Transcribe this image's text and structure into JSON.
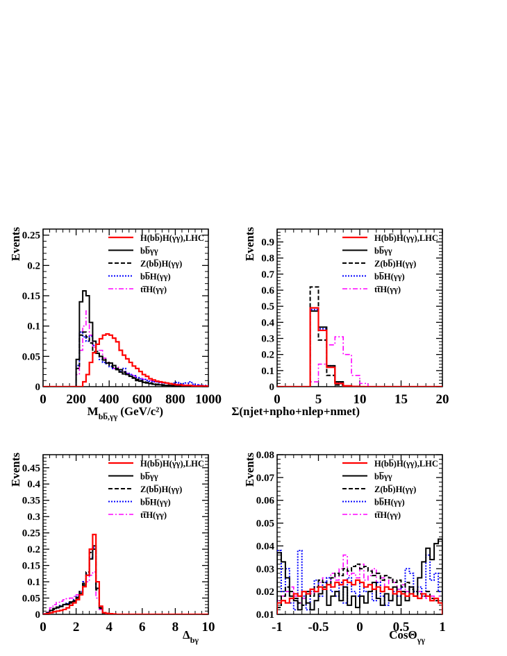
{
  "colors": {
    "signal": "#ff0000",
    "bbaa": "#000000",
    "zh": "#000000",
    "bbh": "#0000ff",
    "tth": "#ff00ff"
  },
  "legend": [
    {
      "key": "signal",
      "label": "H(bb̅)H(γγ),LHC",
      "style": "solid",
      "width": 2.2
    },
    {
      "key": "bbaa",
      "label": "bb̅γγ",
      "style": "solid",
      "width": 2
    },
    {
      "key": "zh",
      "label": "Z(bb̅)H(γγ)",
      "style": "dashed",
      "width": 2
    },
    {
      "key": "bbh",
      "label": "bb̅H(γγ)",
      "style": "dotted",
      "width": 2
    },
    {
      "key": "tth",
      "label": "tt̅H(γγ)",
      "style": "dashdot",
      "width": 1.6
    }
  ],
  "chart_data": [
    {
      "type": "line",
      "title": "",
      "xlabel": "M",
      "xlabel_sub": "bb̅,γγ",
      "xlabel_tail": "(GeV/c²)",
      "ylabel": "Events",
      "xlim": [
        0,
        1000
      ],
      "ylim": [
        0,
        0.26
      ],
      "xticks": [
        0,
        200,
        400,
        600,
        800,
        1000
      ],
      "yticks": [
        0,
        0.05,
        0.1,
        0.15,
        0.2,
        0.25
      ],
      "ytick_labels": [
        "0",
        "0.05",
        "0.1",
        "0.15",
        "0.2",
        "0.25"
      ],
      "bin_edges": [
        200,
        220,
        240,
        260,
        280,
        300,
        320,
        340,
        360,
        380,
        400,
        420,
        440,
        460,
        480,
        500,
        520,
        540,
        560,
        580,
        600,
        620,
        640,
        660,
        680,
        700,
        720,
        740,
        760,
        780,
        800,
        820,
        840,
        860,
        880,
        900,
        920,
        940,
        960,
        980,
        1000
      ],
      "series": [
        {
          "key": "signal",
          "values": [
            0,
            0,
            0.008,
            0.02,
            0.04,
            0.056,
            0.07,
            0.079,
            0.085,
            0.087,
            0.085,
            0.08,
            0.074,
            0.06,
            0.052,
            0.046,
            0.04,
            0.034,
            0.03,
            0.025,
            0.02,
            0.017,
            0.013,
            0.011,
            0.009,
            0.008,
            0.007,
            0.006,
            0.005,
            0.004,
            0.003,
            0.003,
            0.002,
            0.002,
            0.002,
            0.001,
            0.001,
            0.001,
            0.001,
            0.001
          ]
        },
        {
          "key": "bbaa",
          "values": [
            0.045,
            0.14,
            0.158,
            0.15,
            0.106,
            0.075,
            0.055,
            0.05,
            0.044,
            0.039,
            0.039,
            0.035,
            0.028,
            0.024,
            0.021,
            0.02,
            0.017,
            0.014,
            0.01,
            0.009,
            0.007,
            0.006,
            0.005,
            0.004,
            0.003,
            0.003,
            0.002,
            0.002,
            0.002,
            0.001,
            0.001,
            0.001,
            0.001,
            0.001,
            0.001,
            0.001,
            0.001,
            0.001,
            0.001,
            0.001
          ]
        },
        {
          "key": "zh",
          "values": [
            0.03,
            0.085,
            0.09,
            0.082,
            0.072,
            0.058,
            0.058,
            0.05,
            0.045,
            0.04,
            0.035,
            0.032,
            0.03,
            0.028,
            0.024,
            0.02,
            0.018,
            0.015,
            0.012,
            0.01,
            0.009,
            0.007,
            0.006,
            0.005,
            0.004,
            0.003,
            0.003,
            0.002,
            0.002,
            0.002,
            0.001,
            0.001,
            0.001,
            0.001,
            0.001,
            0.001,
            0.001,
            0.001,
            0.001,
            0.001
          ]
        },
        {
          "key": "bbh",
          "values": [
            0.035,
            0.09,
            0.082,
            0.075,
            0.083,
            0.068,
            0.055,
            0.045,
            0.04,
            0.038,
            0.033,
            0.03,
            0.028,
            0.025,
            0.03,
            0.022,
            0.02,
            0.018,
            0.015,
            0.013,
            0.012,
            0.01,
            0.009,
            0.008,
            0.008,
            0.007,
            0.006,
            0.006,
            0.005,
            0.006,
            0.007,
            0.005,
            0.005,
            0.006,
            0.008,
            0.004,
            0.003,
            0.002,
            0.002,
            0.002
          ]
        },
        {
          "key": "tth",
          "values": [
            0.02,
            0.06,
            0.1,
            0.125,
            0.085,
            0.065,
            0.055,
            0.06,
            0.047,
            0.04,
            0.035,
            0.03,
            0.032,
            0.028,
            0.025,
            0.022,
            0.02,
            0.018,
            0.016,
            0.014,
            0.012,
            0.011,
            0.01,
            0.009,
            0.008,
            0.007,
            0.006,
            0.005,
            0.005,
            0.004,
            0.004,
            0.003,
            0.003,
            0.003,
            0.002,
            0.002,
            0.002,
            0.002,
            0.001,
            0.001
          ]
        }
      ]
    },
    {
      "type": "line",
      "title": "",
      "xlabel": "Σ(njet+npho+nlep+nmet)",
      "xlabel_sub": "",
      "xlabel_tail": "",
      "ylabel": "Events",
      "xlim": [
        0,
        20
      ],
      "ylim": [
        0,
        0.98
      ],
      "xticks": [
        0,
        5,
        10,
        15,
        20
      ],
      "yticks": [
        0,
        0.1,
        0.2,
        0.3,
        0.4,
        0.5,
        0.6,
        0.7,
        0.8,
        0.9
      ],
      "ytick_labels": [
        "0",
        "0.1",
        "0.2",
        "0.3",
        "0.4",
        "0.5",
        "0.6",
        "0.7",
        "0.8",
        "0.9"
      ],
      "bin_edges": [
        4,
        5,
        6,
        7,
        8,
        9,
        10,
        11
      ],
      "series": [
        {
          "key": "signal",
          "values": [
            0.49,
            0.35,
            0.12,
            0.02,
            0.005,
            0.001,
            0
          ]
        },
        {
          "key": "bbaa",
          "values": [
            0.47,
            0.37,
            0.13,
            0.03,
            0.005,
            0.001,
            0
          ]
        },
        {
          "key": "zh",
          "values": [
            0.62,
            0.29,
            0.07,
            0.01,
            0.002,
            0,
            0
          ]
        },
        {
          "key": "bbh",
          "values": [
            0.48,
            0.36,
            0.13,
            0.025,
            0.004,
            0.001,
            0
          ]
        },
        {
          "key": "tth",
          "values": [
            0.03,
            0.14,
            0.26,
            0.31,
            0.2,
            0.07,
            0.02
          ]
        }
      ]
    },
    {
      "type": "line",
      "title": "",
      "xlabel": "Δ",
      "xlabel_sub": "bγ",
      "xlabel_tail": "",
      "ylabel": "Events",
      "xlim": [
        0,
        10
      ],
      "ylim": [
        0,
        0.49
      ],
      "xticks": [
        0,
        2,
        4,
        6,
        8,
        10
      ],
      "yticks": [
        0,
        0.05,
        0.1,
        0.15,
        0.2,
        0.25,
        0.3,
        0.35,
        0.4,
        0.45
      ],
      "ytick_labels": [
        "0",
        "0.05",
        "0.1",
        "0.15",
        "0.2",
        "0.25",
        "0.3",
        "0.35",
        "0.4",
        "0.45"
      ],
      "bin_edges": [
        0,
        0.2,
        0.4,
        0.6,
        0.8,
        1.0,
        1.2,
        1.4,
        1.6,
        1.8,
        2.0,
        2.2,
        2.4,
        2.6,
        2.8,
        3.0,
        3.2,
        3.4,
        3.6,
        3.8,
        4.0,
        4.2,
        4.4,
        4.6,
        4.8,
        5.0
      ],
      "series": [
        {
          "key": "signal",
          "values": [
            0,
            0.002,
            0.005,
            0.008,
            0.01,
            0.012,
            0.015,
            0.02,
            0.028,
            0.035,
            0.045,
            0.06,
            0.085,
            0.12,
            0.2,
            0.245,
            0.1,
            0.025,
            0.005,
            0.003,
            0.002,
            0.001,
            0,
            0,
            0
          ]
        },
        {
          "key": "bbaa",
          "values": [
            0.001,
            0.005,
            0.012,
            0.018,
            0.022,
            0.025,
            0.03,
            0.03,
            0.035,
            0.04,
            0.05,
            0.065,
            0.09,
            0.12,
            0.17,
            0.2,
            0.08,
            0.02,
            0.005,
            0.003,
            0.002,
            0.001,
            0,
            0,
            0
          ]
        },
        {
          "key": "zh",
          "values": [
            0.001,
            0.004,
            0.01,
            0.015,
            0.02,
            0.024,
            0.03,
            0.032,
            0.038,
            0.042,
            0.052,
            0.07,
            0.095,
            0.13,
            0.19,
            0.21,
            0.075,
            0.018,
            0.004,
            0.002,
            0.001,
            0.001,
            0,
            0,
            0
          ]
        },
        {
          "key": "bbh",
          "values": [
            0.001,
            0.005,
            0.012,
            0.018,
            0.022,
            0.027,
            0.03,
            0.034,
            0.038,
            0.045,
            0.055,
            0.07,
            0.1,
            0.125,
            0.175,
            0.205,
            0.078,
            0.02,
            0.005,
            0.003,
            0.002,
            0.001,
            0,
            0,
            0
          ]
        },
        {
          "key": "tth",
          "values": [
            0.002,
            0.008,
            0.02,
            0.03,
            0.037,
            0.04,
            0.045,
            0.048,
            0.05,
            0.055,
            0.06,
            0.07,
            0.085,
            0.1,
            0.12,
            0.13,
            0.05,
            0.015,
            0.004,
            0.002,
            0.001,
            0,
            0,
            0,
            0
          ]
        }
      ]
    },
    {
      "type": "line",
      "title": "",
      "xlabel": "CosΘ",
      "xlabel_sub": "γγ",
      "xlabel_tail": "",
      "ylabel": "Events",
      "xlim": [
        -1,
        1
      ],
      "ylim": [
        0.01,
        0.08
      ],
      "xticks": [
        -1,
        -0.5,
        0,
        0.5,
        1
      ],
      "xtick_labels": [
        "-1",
        "-0.5",
        "0",
        "0.5",
        "1"
      ],
      "yticks": [
        0.01,
        0.02,
        0.03,
        0.04,
        0.05,
        0.06,
        0.07,
        0.08
      ],
      "ytick_labels": [
        "0.01",
        "0.02",
        "0.03",
        "0.04",
        "0.05",
        "0.06",
        "0.07",
        "0.08"
      ],
      "bin_edges": [
        -1.0,
        -0.95,
        -0.9,
        -0.85,
        -0.8,
        -0.75,
        -0.7,
        -0.65,
        -0.6,
        -0.55,
        -0.5,
        -0.45,
        -0.4,
        -0.35,
        -0.3,
        -0.25,
        -0.2,
        -0.15,
        -0.1,
        -0.05,
        0.0,
        0.05,
        0.1,
        0.15,
        0.2,
        0.25,
        0.3,
        0.35,
        0.4,
        0.45,
        0.5,
        0.55,
        0.6,
        0.65,
        0.7,
        0.75,
        0.8,
        0.85,
        0.9,
        0.95,
        1.0
      ],
      "series": [
        {
          "key": "signal",
          "values": [
            0.015,
            0.016,
            0.015,
            0.017,
            0.019,
            0.018,
            0.02,
            0.019,
            0.021,
            0.02,
            0.022,
            0.021,
            0.023,
            0.022,
            0.024,
            0.023,
            0.025,
            0.024,
            0.023,
            0.025,
            0.024,
            0.022,
            0.023,
            0.021,
            0.022,
            0.02,
            0.022,
            0.021,
            0.019,
            0.02,
            0.019,
            0.018,
            0.019,
            0.018,
            0.017,
            0.019,
            0.018,
            0.016,
            0.017,
            0.015
          ]
        },
        {
          "key": "bbaa",
          "values": [
            0.037,
            0.033,
            0.026,
            0.018,
            0.016,
            0.012,
            0.02,
            0.015,
            0.012,
            0.016,
            0.019,
            0.022,
            0.014,
            0.018,
            0.02,
            0.016,
            0.022,
            0.014,
            0.018,
            0.013,
            0.018,
            0.015,
            0.02,
            0.024,
            0.017,
            0.014,
            0.019,
            0.016,
            0.022,
            0.014,
            0.02,
            0.016,
            0.022,
            0.018,
            0.026,
            0.033,
            0.039,
            0.034,
            0.041,
            0.043
          ]
        },
        {
          "key": "zh",
          "values": [
            0.013,
            0.018,
            0.022,
            0.02,
            0.017,
            0.015,
            0.014,
            0.02,
            0.018,
            0.022,
            0.025,
            0.024,
            0.023,
            0.026,
            0.028,
            0.027,
            0.03,
            0.029,
            0.031,
            0.032,
            0.03,
            0.031,
            0.029,
            0.027,
            0.028,
            0.025,
            0.027,
            0.026,
            0.024,
            0.025,
            0.022,
            0.024,
            0.021,
            0.02,
            0.019,
            0.018,
            0.02,
            0.017,
            0.016,
            0.015
          ]
        },
        {
          "key": "bbh",
          "values": [
            0.038,
            0.02,
            0.03,
            0.015,
            0.012,
            0.038,
            0.018,
            0.012,
            0.02,
            0.025,
            0.018,
            0.024,
            0.026,
            0.02,
            0.018,
            0.024,
            0.015,
            0.026,
            0.02,
            0.018,
            0.024,
            0.02,
            0.02,
            0.016,
            0.024,
            0.018,
            0.014,
            0.016,
            0.02,
            0.018,
            0.022,
            0.03,
            0.028,
            0.02,
            0.022,
            0.018,
            0.036,
            0.025,
            0.028,
            0.02
          ]
        },
        {
          "key": "tth",
          "values": [
            0.016,
            0.018,
            0.02,
            0.022,
            0.018,
            0.015,
            0.017,
            0.02,
            0.019,
            0.022,
            0.024,
            0.026,
            0.023,
            0.028,
            0.025,
            0.03,
            0.036,
            0.027,
            0.028,
            0.026,
            0.032,
            0.025,
            0.027,
            0.03,
            0.024,
            0.026,
            0.022,
            0.025,
            0.024,
            0.021,
            0.023,
            0.02,
            0.022,
            0.018,
            0.02,
            0.019,
            0.017,
            0.018,
            0.016,
            0.018
          ]
        }
      ]
    }
  ]
}
